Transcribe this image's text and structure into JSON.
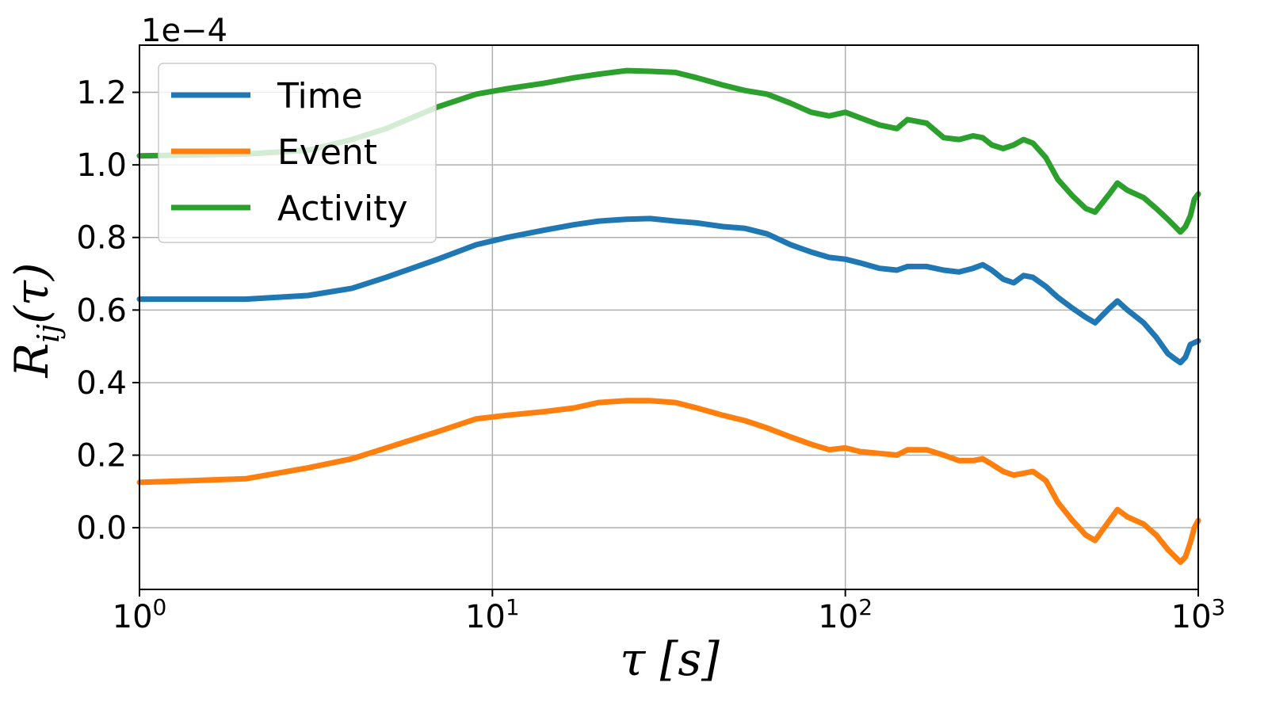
{
  "chart_data": {
    "type": "line",
    "xscale": "log",
    "xlim": [
      1,
      1000
    ],
    "ylim": [
      -0.17,
      1.33
    ],
    "y_scale_factor": "1e−4",
    "grid": true,
    "legend_position": "upper-left",
    "xlabel": "τ [s]",
    "ylabel": "R",
    "ylabel_subscript": "ij",
    "ylabel_suffix": "(τ)",
    "x_tick_labels": [
      {
        "base": "10",
        "exp": "0",
        "value": 1
      },
      {
        "base": "10",
        "exp": "1",
        "value": 10
      },
      {
        "base": "10",
        "exp": "2",
        "value": 100
      },
      {
        "base": "10",
        "exp": "3",
        "value": 1000
      }
    ],
    "y_tick_labels": [
      {
        "label": "0.0",
        "value": 0.0
      },
      {
        "label": "0.2",
        "value": 0.2
      },
      {
        "label": "0.4",
        "value": 0.4
      },
      {
        "label": "0.6",
        "value": 0.6
      },
      {
        "label": "0.8",
        "value": 0.8
      },
      {
        "label": "1.0",
        "value": 1.0
      },
      {
        "label": "1.2",
        "value": 1.2
      }
    ],
    "series": [
      {
        "name": "Time",
        "color": "#1f77b4",
        "points": [
          [
            1,
            0.63
          ],
          [
            2,
            0.63
          ],
          [
            3,
            0.64
          ],
          [
            4,
            0.66
          ],
          [
            5,
            0.69
          ],
          [
            7,
            0.74
          ],
          [
            9,
            0.78
          ],
          [
            11,
            0.8
          ],
          [
            14,
            0.82
          ],
          [
            17,
            0.835
          ],
          [
            20,
            0.845
          ],
          [
            24,
            0.85
          ],
          [
            28,
            0.852
          ],
          [
            33,
            0.845
          ],
          [
            38,
            0.84
          ],
          [
            45,
            0.83
          ],
          [
            52,
            0.825
          ],
          [
            60,
            0.81
          ],
          [
            70,
            0.78
          ],
          [
            80,
            0.76
          ],
          [
            90,
            0.745
          ],
          [
            100,
            0.74
          ],
          [
            110,
            0.73
          ],
          [
            125,
            0.715
          ],
          [
            140,
            0.71
          ],
          [
            150,
            0.72
          ],
          [
            170,
            0.72
          ],
          [
            190,
            0.71
          ],
          [
            210,
            0.705
          ],
          [
            230,
            0.715
          ],
          [
            245,
            0.725
          ],
          [
            260,
            0.71
          ],
          [
            280,
            0.685
          ],
          [
            300,
            0.675
          ],
          [
            320,
            0.695
          ],
          [
            340,
            0.69
          ],
          [
            370,
            0.665
          ],
          [
            400,
            0.635
          ],
          [
            440,
            0.605
          ],
          [
            480,
            0.58
          ],
          [
            510,
            0.565
          ],
          [
            560,
            0.605
          ],
          [
            590,
            0.625
          ],
          [
            630,
            0.6
          ],
          [
            700,
            0.565
          ],
          [
            760,
            0.525
          ],
          [
            820,
            0.48
          ],
          [
            860,
            0.465
          ],
          [
            890,
            0.455
          ],
          [
            920,
            0.47
          ],
          [
            950,
            0.505
          ],
          [
            975,
            0.51
          ],
          [
            1000,
            0.515
          ]
        ]
      },
      {
        "name": "Event",
        "color": "#ff7f0e",
        "points": [
          [
            1,
            0.125
          ],
          [
            2,
            0.135
          ],
          [
            3,
            0.165
          ],
          [
            4,
            0.19
          ],
          [
            5,
            0.22
          ],
          [
            7,
            0.265
          ],
          [
            9,
            0.3
          ],
          [
            11,
            0.31
          ],
          [
            14,
            0.32
          ],
          [
            17,
            0.33
          ],
          [
            20,
            0.345
          ],
          [
            24,
            0.35
          ],
          [
            28,
            0.35
          ],
          [
            33,
            0.345
          ],
          [
            38,
            0.33
          ],
          [
            45,
            0.31
          ],
          [
            52,
            0.295
          ],
          [
            60,
            0.275
          ],
          [
            70,
            0.25
          ],
          [
            80,
            0.23
          ],
          [
            90,
            0.215
          ],
          [
            100,
            0.22
          ],
          [
            110,
            0.21
          ],
          [
            125,
            0.205
          ],
          [
            140,
            0.2
          ],
          [
            150,
            0.215
          ],
          [
            170,
            0.215
          ],
          [
            190,
            0.2
          ],
          [
            210,
            0.185
          ],
          [
            230,
            0.185
          ],
          [
            245,
            0.19
          ],
          [
            260,
            0.175
          ],
          [
            280,
            0.155
          ],
          [
            300,
            0.145
          ],
          [
            320,
            0.15
          ],
          [
            340,
            0.155
          ],
          [
            370,
            0.13
          ],
          [
            400,
            0.07
          ],
          [
            440,
            0.02
          ],
          [
            480,
            -0.02
          ],
          [
            510,
            -0.035
          ],
          [
            560,
            0.02
          ],
          [
            590,
            0.05
          ],
          [
            630,
            0.03
          ],
          [
            700,
            0.01
          ],
          [
            760,
            -0.02
          ],
          [
            820,
            -0.06
          ],
          [
            860,
            -0.08
          ],
          [
            890,
            -0.095
          ],
          [
            920,
            -0.08
          ],
          [
            950,
            -0.04
          ],
          [
            975,
            0.0
          ],
          [
            1000,
            0.02
          ]
        ]
      },
      {
        "name": "Activity",
        "color": "#2ca02c",
        "points": [
          [
            1,
            1.025
          ],
          [
            2,
            1.03
          ],
          [
            3,
            1.04
          ],
          [
            4,
            1.07
          ],
          [
            5,
            1.1
          ],
          [
            7,
            1.16
          ],
          [
            9,
            1.195
          ],
          [
            11,
            1.21
          ],
          [
            14,
            1.225
          ],
          [
            17,
            1.24
          ],
          [
            20,
            1.25
          ],
          [
            24,
            1.26
          ],
          [
            28,
            1.258
          ],
          [
            33,
            1.255
          ],
          [
            38,
            1.24
          ],
          [
            45,
            1.22
          ],
          [
            52,
            1.205
          ],
          [
            60,
            1.195
          ],
          [
            70,
            1.17
          ],
          [
            80,
            1.145
          ],
          [
            90,
            1.135
          ],
          [
            100,
            1.145
          ],
          [
            110,
            1.13
          ],
          [
            125,
            1.11
          ],
          [
            140,
            1.1
          ],
          [
            150,
            1.125
          ],
          [
            170,
            1.115
          ],
          [
            190,
            1.075
          ],
          [
            210,
            1.07
          ],
          [
            230,
            1.08
          ],
          [
            245,
            1.075
          ],
          [
            260,
            1.055
          ],
          [
            280,
            1.045
          ],
          [
            300,
            1.055
          ],
          [
            320,
            1.07
          ],
          [
            340,
            1.06
          ],
          [
            370,
            1.02
          ],
          [
            400,
            0.96
          ],
          [
            440,
            0.915
          ],
          [
            480,
            0.88
          ],
          [
            510,
            0.87
          ],
          [
            560,
            0.92
          ],
          [
            590,
            0.95
          ],
          [
            630,
            0.93
          ],
          [
            700,
            0.91
          ],
          [
            760,
            0.88
          ],
          [
            820,
            0.85
          ],
          [
            860,
            0.83
          ],
          [
            890,
            0.815
          ],
          [
            920,
            0.83
          ],
          [
            950,
            0.86
          ],
          [
            975,
            0.905
          ],
          [
            1000,
            0.92
          ]
        ]
      }
    ]
  }
}
